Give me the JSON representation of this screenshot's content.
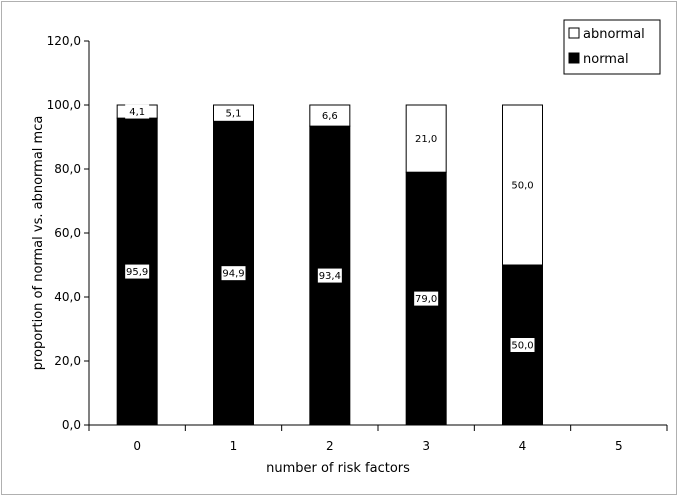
{
  "chart_data": {
    "type": "bar",
    "stacked": true,
    "categories": [
      "0",
      "1",
      "2",
      "3",
      "4",
      "5"
    ],
    "series": [
      {
        "name": "normal",
        "values": [
          95.9,
          94.9,
          93.4,
          79.0,
          50.0,
          null
        ],
        "labels": [
          "95,9",
          "94,9",
          "93,4",
          "79,0",
          "50,0",
          ""
        ],
        "color": "#000000"
      },
      {
        "name": "abnormal",
        "values": [
          4.1,
          5.1,
          6.6,
          21.0,
          50.0,
          null
        ],
        "labels": [
          "4,1",
          "5,1",
          "6,6",
          "21,0",
          "50,0",
          ""
        ],
        "color": "#ffffff"
      }
    ],
    "xlabel": "number of risk factors",
    "ylabel": "proportion of normal vs. abnormal mca",
    "ylim": [
      0,
      120
    ],
    "yticks": [
      0,
      20,
      40,
      60,
      80,
      100,
      120
    ],
    "ytick_labels": [
      "0,0",
      "20,0",
      "40,0",
      "60,0",
      "80,0",
      "100,0",
      "120,0"
    ],
    "grid": false,
    "legend_position": "top-right",
    "legend": [
      {
        "name": "abnormal",
        "color": "#ffffff"
      },
      {
        "name": "normal",
        "color": "#000000"
      }
    ]
  }
}
